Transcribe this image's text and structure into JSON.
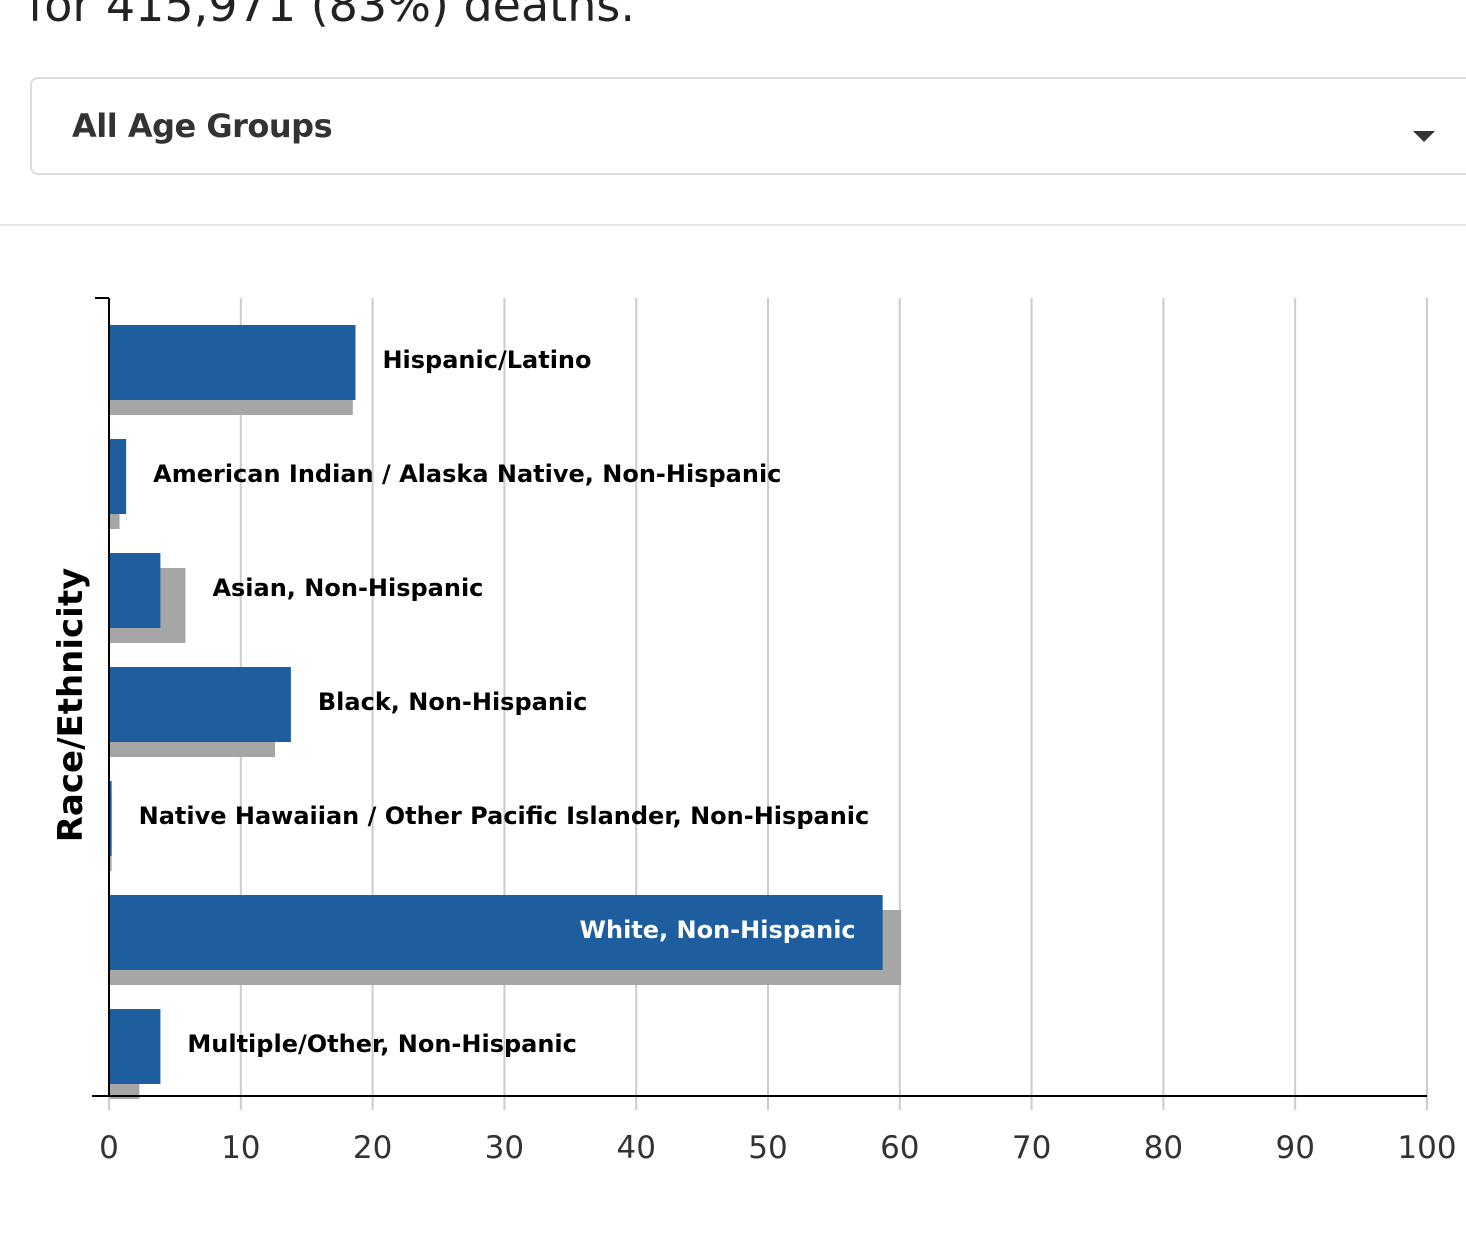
{
  "intro_text": "for 415,971 (83%) deaths.",
  "age_filter": {
    "selected": "All Age Groups"
  },
  "colors": {
    "primary": "#1f5e9e",
    "comparison": "#a6a6a6",
    "grid": "#cccccc",
    "axis": "#000000",
    "label": "#000000",
    "label_inside": "#ffffff"
  },
  "chart_data": {
    "type": "bar",
    "orientation": "horizontal",
    "ylabel": "Race/Ethnicity",
    "xlabel": "",
    "xlim": [
      0,
      100
    ],
    "xticks": [
      0,
      10,
      20,
      30,
      40,
      50,
      60,
      70,
      80,
      90,
      100
    ],
    "grid": true,
    "categories": [
      "Hispanic/Latino",
      "American Indian / Alaska Native, Non-Hispanic",
      "Asian, Non-Hispanic",
      "Black, Non-Hispanic",
      "Native Hawaiian / Other Pacific Islander, Non-Hispanic",
      "White, Non-Hispanic",
      "Multiple/Other, Non-Hispanic"
    ],
    "series": [
      {
        "values": [
          18.7,
          1.3,
          3.9,
          13.8,
          0.2,
          58.7,
          3.9
        ]
      },
      {
        "values": [
          18.5,
          0.8,
          5.8,
          12.6,
          0.2,
          60.1,
          2.3
        ]
      }
    ]
  }
}
